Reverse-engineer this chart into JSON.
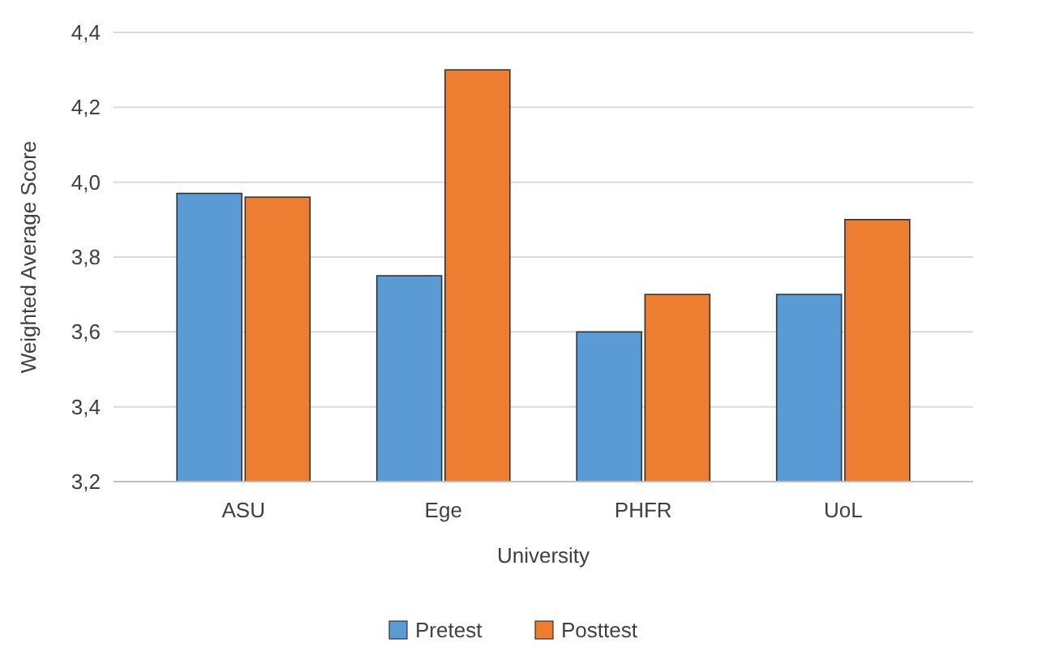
{
  "chart_data": {
    "type": "bar",
    "xlabel": "University",
    "ylabel": "Weighted Average Score",
    "categories": [
      "ASU",
      "Ege",
      "PHFR",
      "UoL"
    ],
    "series": [
      {
        "name": "Pretest",
        "color": "#5b9bd5",
        "values": [
          3.97,
          3.75,
          3.6,
          3.7
        ]
      },
      {
        "name": "Posttest",
        "color": "#ed7d31",
        "values": [
          3.96,
          4.3,
          3.7,
          3.9
        ]
      }
    ],
    "ylim": [
      3.2,
      4.4
    ],
    "yticks": [
      {
        "value": 3.2,
        "label": "3,2"
      },
      {
        "value": 3.4,
        "label": "3,4"
      },
      {
        "value": 3.6,
        "label": "3,6"
      },
      {
        "value": 3.8,
        "label": "3,8"
      },
      {
        "value": 4.0,
        "label": "4,0"
      },
      {
        "value": 4.2,
        "label": "4,2"
      },
      {
        "value": 4.4,
        "label": "4,4"
      }
    ],
    "grid": true,
    "legend": "bottom"
  }
}
